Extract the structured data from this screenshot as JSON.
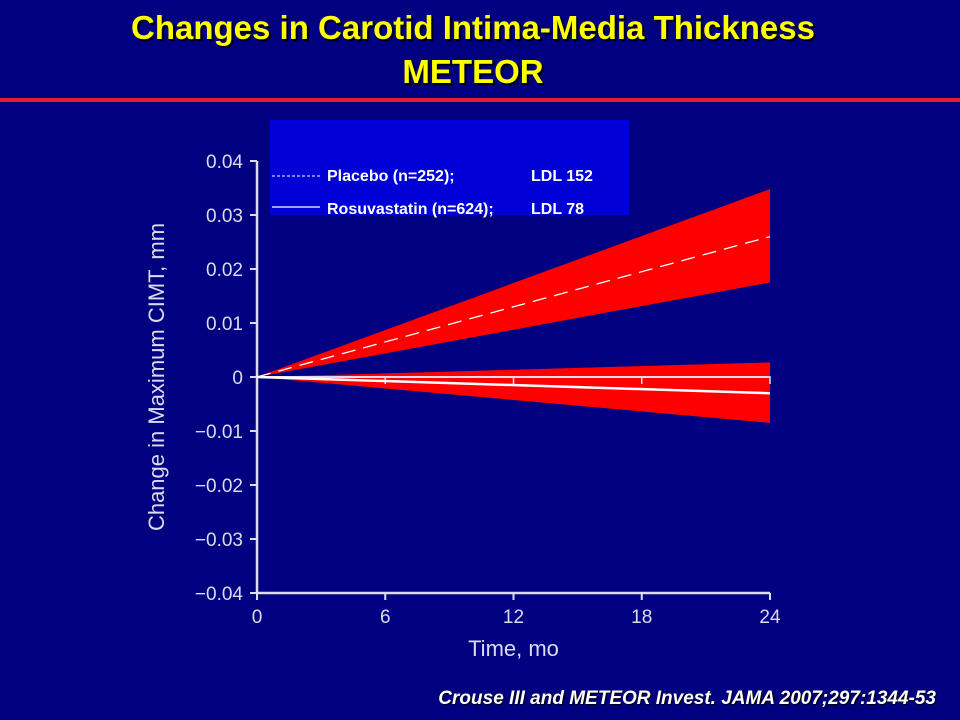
{
  "slide": {
    "title_line1": "Changes in Carotid Intima-Media Thickness",
    "title_line2": "METEOR",
    "citation": "Crouse III and METEOR Invest.  JAMA 2007;297:1344-53"
  },
  "colors": {
    "background": "#000080",
    "title": "#ffff00",
    "rule": "#e51d2a",
    "band": "#ff0000",
    "legend_box": "#0000d6",
    "axis": "#dcdcf0",
    "lines": "#ffffff"
  },
  "chart_data": {
    "type": "line",
    "title": "",
    "xlabel": "Time, mo",
    "ylabel": "Change in Maximum CIMT, mm",
    "xlim": [
      0,
      24
    ],
    "ylim": [
      -0.04,
      0.04
    ],
    "x_ticks": [
      0,
      6,
      12,
      18,
      24
    ],
    "x_tick_labels": [
      "0",
      "6",
      "12",
      "18",
      "24"
    ],
    "y_ticks": [
      0.04,
      0.03,
      0.02,
      0.01,
      0,
      -0.01,
      -0.02,
      -0.03,
      -0.04
    ],
    "y_tick_labels": [
      "0.04",
      "0.03",
      "0.02",
      "0.01",
      "0",
      "−0.01",
      "−0.02",
      "−0.03",
      "−0.04"
    ],
    "grid": false,
    "legend_position": "top-left",
    "series": [
      {
        "name": "Placebo (n=252);",
        "ldl_label": "LDL 152",
        "style": "dashed",
        "x": [
          0,
          24
        ],
        "y": [
          0,
          0.026
        ],
        "band_lower": [
          0,
          0.0175
        ],
        "band_upper": [
          0,
          0.0348
        ]
      },
      {
        "name": "Rosuvastatin (n=624);",
        "ldl_label": "LDL 78",
        "style": "solid",
        "x": [
          0,
          24
        ],
        "y": [
          0,
          -0.003
        ],
        "band_lower": [
          0,
          -0.0085
        ],
        "band_upper": [
          0,
          0.0027
        ]
      }
    ]
  }
}
